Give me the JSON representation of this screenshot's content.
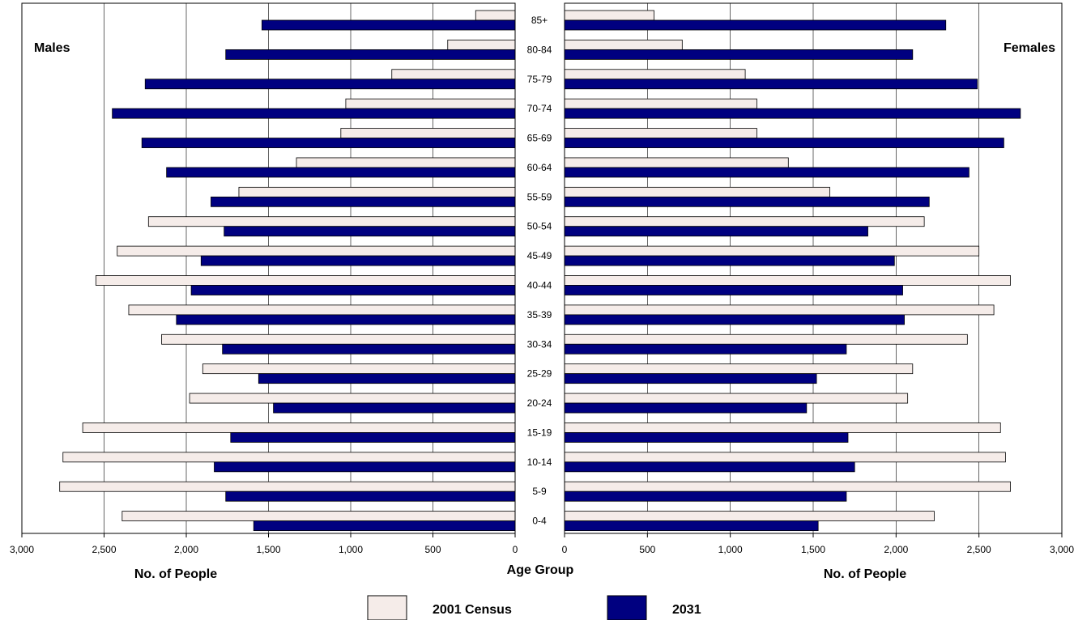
{
  "chart_data": {
    "type": "bar",
    "orientation": "horizontal",
    "layout": "population-pyramid",
    "categories": [
      "0-4",
      "5-9",
      "10-14",
      "15-19",
      "20-24",
      "25-29",
      "30-34",
      "35-39",
      "40-44",
      "45-49",
      "50-54",
      "55-59",
      "60-64",
      "65-69",
      "70-74",
      "75-79",
      "80-84",
      "85+"
    ],
    "category_axis_label": "Age Group",
    "legend": {
      "placement": "bottom-center",
      "entries": [
        {
          "name": "2001 Census",
          "color": "#F5ECE9"
        },
        {
          "name": "2031",
          "color": "#000080"
        }
      ]
    },
    "panels": [
      {
        "side": "left",
        "title": "Males",
        "xlabel": "No. of People",
        "xlim": [
          0,
          3000
        ],
        "ticks": [
          "0",
          "500",
          "1,000",
          "1,500",
          "2,000",
          "2,500",
          "3,000"
        ],
        "grid": true,
        "series": [
          {
            "name": "2001 Census",
            "values": [
              2390,
              2770,
              2750,
              2630,
              1980,
              1900,
              2150,
              2350,
              2550,
              2420,
              2230,
              1680,
              1330,
              1060,
              1030,
              750,
              410,
              240
            ]
          },
          {
            "name": "2031",
            "values": [
              1590,
              1760,
              1830,
              1730,
              1470,
              1560,
              1780,
              2060,
              1970,
              1910,
              1770,
              1850,
              2120,
              2270,
              2450,
              2250,
              1760,
              1540
            ]
          }
        ]
      },
      {
        "side": "right",
        "title": "Females",
        "xlabel": "No. of People",
        "xlim": [
          0,
          3000
        ],
        "ticks": [
          "0",
          "500",
          "1,000",
          "1,500",
          "2,000",
          "2,500",
          "3,000"
        ],
        "grid": true,
        "series": [
          {
            "name": "2001 Census",
            "values": [
              2230,
              2690,
              2660,
              2630,
              2070,
              2100,
              2430,
              2590,
              2690,
              2500,
              2170,
              1600,
              1350,
              1160,
              1160,
              1090,
              710,
              540
            ]
          },
          {
            "name": "2031",
            "values": [
              1530,
              1700,
              1750,
              1710,
              1460,
              1520,
              1700,
              2050,
              2040,
              1990,
              1830,
              2200,
              2440,
              2650,
              2750,
              2490,
              2100,
              2300
            ]
          }
        ]
      }
    ]
  }
}
